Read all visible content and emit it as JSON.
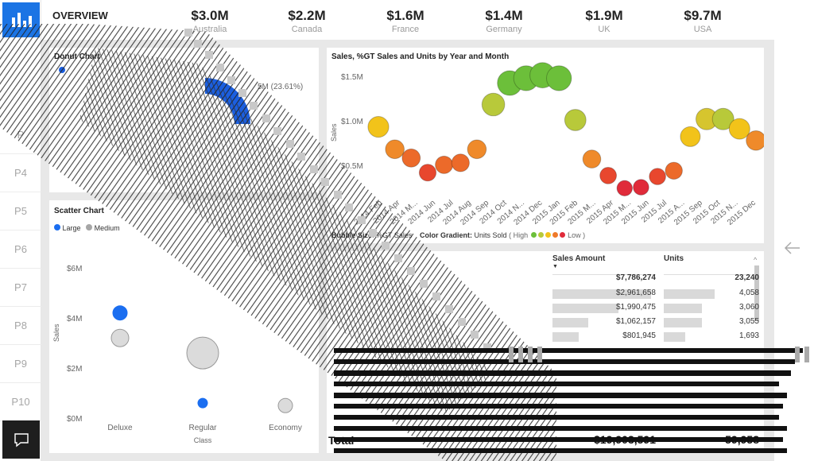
{
  "overview_label": "OVERVIEW",
  "kpis": [
    {
      "value": "$3.0M",
      "label": "Australia"
    },
    {
      "value": "$2.2M",
      "label": "Canada"
    },
    {
      "value": "$1.6M",
      "label": "France"
    },
    {
      "value": "$1.4M",
      "label": "Germany"
    },
    {
      "value": "$1.9M",
      "label": "UK"
    },
    {
      "value": "$9.7M",
      "label": "USA"
    }
  ],
  "nav_pages": [
    "P4",
    "P5",
    "P6",
    "P7",
    "P8",
    "P9",
    "P10"
  ],
  "nav_partial_page": "P",
  "donut": {
    "title": "Donut Chart",
    "slice_label": "5M (23.61%)",
    "accent": "#1b5fe0"
  },
  "line_chart": {
    "title": "Sales, %GT Sales and Units by Year and Month",
    "ylabel": "Sales",
    "yticks": [
      "$1.5M",
      "$1.0M",
      "$0.5M"
    ],
    "xticks": [
      "2014 Feb",
      "2014 Apr",
      "2014 M...",
      "2014 Jun",
      "2014 Jul",
      "2014 Aug",
      "2014 Sep",
      "2014 Oct",
      "2014 N...",
      "2014 Dec",
      "2015 Jan",
      "2015 Feb",
      "2015 M...",
      "2015 Apr",
      "2015 M...",
      "2015 Jun",
      "2015 Jul",
      "2015 A...",
      "2015 Sep",
      "2015 Oct",
      "2015 N...",
      "2015 Dec"
    ],
    "bubble_size_label": "Bubble Size",
    "bubble_size_value": "%GT Sales",
    "gradient_label": "Color Gradient:",
    "gradient_value": "Units Sold",
    "gradient_high": "( High",
    "gradient_low": "Low )",
    "gradient_colors": [
      "#6cbf3a",
      "#b8c93a",
      "#f2c31a",
      "#ef7a2a",
      "#e02b3a"
    ]
  },
  "scatter": {
    "title": "Scatter Chart",
    "legend": [
      {
        "name": "Large",
        "color": "#1b6ef0"
      },
      {
        "name": "Medium",
        "color": "#a6a6a6"
      }
    ],
    "ylabel": "Sales",
    "xlabel": "Class",
    "yticks": [
      "$6M",
      "$4M",
      "$2M",
      "$0M"
    ],
    "xticks": [
      "Deluxe",
      "Regular",
      "Economy"
    ]
  },
  "matrix": {
    "col_sales": "Sales Amount",
    "col_units": "Units",
    "sort_indicator": "▼",
    "total_sales": "$7,786,274",
    "total_units": "23,240",
    "rows": [
      {
        "sales": "$2,961,658",
        "units": "4,058",
        "sf": 1.0,
        "uf": 1.0
      },
      {
        "sales": "$1,990,475",
        "units": "3,060",
        "sf": 0.67,
        "uf": 0.75
      },
      {
        "sales": "$1,062,157",
        "units": "3,055",
        "sf": 0.36,
        "uf": 0.75
      },
      {
        "sales": "$801,945",
        "units": "1,693",
        "sf": 0.27,
        "uf": 0.42
      }
    ],
    "grand_label": "Total",
    "grand_sales": "$19,903,591",
    "grand_units": "59,958"
  },
  "chart_data": [
    {
      "type": "scatter",
      "title": "Sales, %GT Sales and Units by Year and Month",
      "ylabel": "Sales",
      "x": [
        "2014 Jan",
        "2014 Feb",
        "2014 Mar",
        "2014 Apr",
        "2014 May",
        "2014 Jun",
        "2014 Jul",
        "2014 Aug",
        "2014 Sep",
        "2014 Oct",
        "2014 Nov",
        "2014 Dec",
        "2015 Jan",
        "2015 Feb",
        "2015 Mar",
        "2015 Apr",
        "2015 May",
        "2015 Jun",
        "2015 Jul",
        "2015 Aug",
        "2015 Sep",
        "2015 Oct",
        "2015 Nov",
        "2015 Dec"
      ],
      "values": [
        0.95,
        0.72,
        0.63,
        0.48,
        0.56,
        0.58,
        0.72,
        1.18,
        1.4,
        1.45,
        1.48,
        1.45,
        1.02,
        0.62,
        0.45,
        0.32,
        0.33,
        0.44,
        0.5,
        0.85,
        1.03,
        1.03,
        0.93,
        0.81
      ],
      "colors": [
        "#f2c31a",
        "#ef8a2a",
        "#ec6a2a",
        "#e8472e",
        "#ec6a2a",
        "#ec6a2a",
        "#ef8a2a",
        "#b8c93a",
        "#6cbf3a",
        "#6cbf3a",
        "#6cbf3a",
        "#6cbf3a",
        "#b8c93a",
        "#ef8a2a",
        "#e8472e",
        "#e02b3a",
        "#e02b3a",
        "#e8472e",
        "#ec6a2a",
        "#f2c31a",
        "#d6c52e",
        "#b8c93a",
        "#f2c31a",
        "#ef8a2a"
      ],
      "ylim": [
        0,
        1.6
      ]
    },
    {
      "type": "scatter",
      "title": "Scatter Chart",
      "xlabel": "Class",
      "ylabel": "Sales",
      "categories": [
        "Deluxe",
        "Regular",
        "Economy"
      ],
      "series": [
        {
          "name": "Large",
          "values": [
            4.2,
            0.6,
            null
          ]
        },
        {
          "name": "Medium",
          "values": [
            3.2,
            2.6,
            0.5
          ]
        }
      ],
      "ylim": [
        0,
        6
      ]
    }
  ]
}
